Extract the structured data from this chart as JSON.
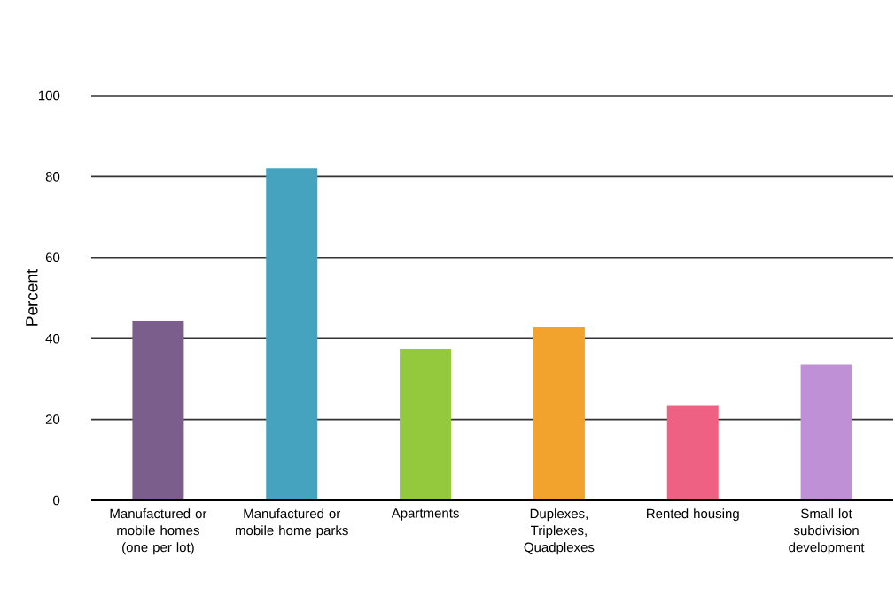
{
  "chart_data": {
    "type": "bar",
    "ylabel": "Percent",
    "categories": [
      "Manufactured or mobile homes (one per lot)",
      "Manufactured or mobile home parks",
      "Apartments",
      "Duplexes, Triplexes, Quadplexes",
      "Rented housing",
      "Small lot subdivision development"
    ],
    "values": [
      44.4,
      82.0,
      37.4,
      42.9,
      23.5,
      33.6
    ],
    "colors": [
      "#7b5e8c",
      "#45a3bf",
      "#94c83d",
      "#f2a32e",
      "#ee6182",
      "#bf90d6"
    ],
    "ylim": [
      0,
      100
    ],
    "yticks": [
      0,
      20,
      40,
      60,
      80,
      100
    ],
    "grid": "y"
  }
}
